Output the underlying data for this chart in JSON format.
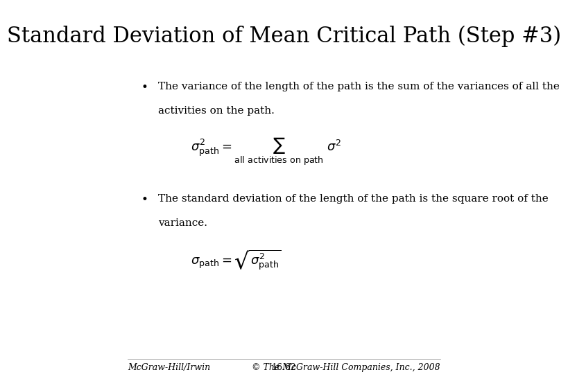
{
  "title": "Standard Deviation of Mean Critical Path (Step #3)",
  "background_color": "#ffffff",
  "text_color": "#000000",
  "title_fontsize": 22,
  "bullet1_text1": "The variance of the length of the path is the sum of the variances of all the",
  "bullet1_text2": "activities on the path.",
  "formula1": "$\\sigma^2_{\\mathrm{path}} = \\sum_{\\mathrm{all\\ activities\\ on\\ path}}\\ \\sigma^2$",
  "bullet2_text1": "The standard deviation of the length of the path is the square root of the",
  "bullet2_text2": "variance.",
  "formula2": "$\\sigma_{\\mathrm{path}} = \\sqrt{\\sigma^2_{\\mathrm{path}}}$",
  "footer_left": "McGraw-Hill/Irwin",
  "footer_center": "16.62",
  "footer_right": "© The McGraw-Hill Companies, Inc., 2008",
  "footer_fontsize": 9
}
